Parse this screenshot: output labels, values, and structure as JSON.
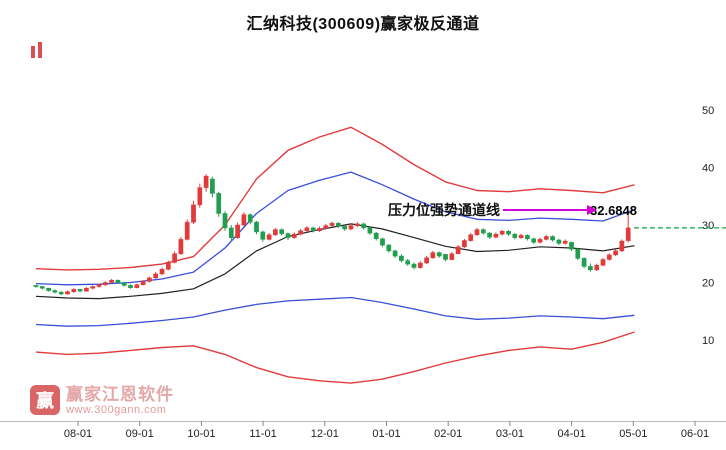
{
  "title": "汇纳科技(300609)赢家极反通道",
  "annotation": {
    "label": "压力位强势通道线",
    "value": "32.6848",
    "arrow_color": "#d400d4"
  },
  "watermark": {
    "logo_char": "赢",
    "name": "赢家江恩软件",
    "url": "www.300gann.com"
  },
  "colors": {
    "up": "#e03a3a",
    "down": "#1f9e50",
    "band_red": "#e23b3b",
    "band_blue": "#3a4fd8",
    "band_mid": "#222222",
    "last_price_line": "#18a54a",
    "axis_line": "#bbbbbb"
  },
  "axis": {
    "x_labels": [
      "08-01",
      "09-01",
      "10-01",
      "11-01",
      "12-01",
      "01-01",
      "02-01",
      "03-01",
      "04-01",
      "05-01",
      "06-01"
    ],
    "y_ticks": [
      50,
      40,
      30,
      20,
      10
    ]
  },
  "chart_data": {
    "type": "candlestick",
    "title": "汇纳科技(300609)赢家极反通道",
    "symbol": "汇纳科技",
    "code": "300609",
    "channel_name": "赢家极反通道",
    "pressure_line_label": "压力位强势通道线",
    "pressure_line_value": 32.6848,
    "last_price": 29.5,
    "y_axis_ticks": [
      50,
      40,
      30,
      20,
      10
    ],
    "x_axis_months": [
      "08-01",
      "09-01",
      "10-01",
      "11-01",
      "12-01",
      "01-01",
      "02-01",
      "03-01",
      "04-01",
      "05-01",
      "06-01"
    ],
    "candles_note": "estimated OHLC read from chart, ~2 trading days per candle, Jul下旬 to May上旬",
    "candles": [
      [
        19.5,
        19.6,
        19.1,
        19.3
      ],
      [
        19.3,
        19.4,
        18.8,
        19.0
      ],
      [
        19.0,
        19.1,
        18.4,
        18.6
      ],
      [
        18.6,
        18.8,
        18.1,
        18.3
      ],
      [
        18.3,
        18.5,
        17.8,
        18.0
      ],
      [
        18.0,
        18.6,
        17.9,
        18.4
      ],
      [
        18.4,
        19.0,
        18.2,
        18.8
      ],
      [
        18.8,
        18.9,
        18.3,
        18.5
      ],
      [
        18.5,
        19.2,
        18.4,
        19.0
      ],
      [
        19.0,
        19.5,
        18.8,
        19.3
      ],
      [
        19.3,
        19.8,
        19.1,
        19.6
      ],
      [
        19.6,
        20.2,
        19.4,
        20.0
      ],
      [
        20.0,
        20.6,
        19.8,
        20.4
      ],
      [
        20.4,
        20.5,
        19.8,
        20.0
      ],
      [
        20.0,
        20.1,
        19.3,
        19.5
      ],
      [
        19.5,
        19.7,
        18.9,
        19.1
      ],
      [
        19.1,
        19.8,
        19.0,
        19.6
      ],
      [
        19.6,
        20.4,
        19.5,
        20.2
      ],
      [
        20.2,
        21.0,
        20.0,
        20.8
      ],
      [
        20.8,
        21.8,
        20.6,
        21.5
      ],
      [
        21.5,
        22.6,
        21.3,
        22.3
      ],
      [
        22.3,
        23.8,
        22.1,
        23.5
      ],
      [
        23.5,
        25.4,
        23.3,
        25.0
      ],
      [
        25.0,
        27.9,
        24.8,
        27.5
      ],
      [
        27.5,
        31.0,
        27.3,
        30.5
      ],
      [
        30.5,
        34.2,
        30.2,
        33.5
      ],
      [
        33.5,
        37.2,
        33.0,
        36.5
      ],
      [
        36.5,
        38.8,
        35.8,
        38.5
      ],
      [
        38.0,
        38.4,
        34.8,
        35.5
      ],
      [
        35.5,
        35.8,
        31.4,
        32.0
      ],
      [
        32.0,
        32.4,
        29.0,
        29.5
      ],
      [
        29.5,
        30.0,
        27.2,
        27.8
      ],
      [
        27.8,
        30.4,
        27.6,
        30.0
      ],
      [
        30.0,
        32.2,
        29.8,
        31.8
      ],
      [
        31.8,
        32.0,
        30.1,
        30.5
      ],
      [
        30.5,
        30.7,
        28.4,
        28.8
      ],
      [
        28.8,
        29.0,
        27.1,
        27.5
      ],
      [
        27.5,
        28.6,
        27.3,
        28.3
      ],
      [
        28.3,
        29.5,
        28.1,
        29.2
      ],
      [
        29.2,
        29.4,
        28.2,
        28.5
      ],
      [
        28.5,
        28.7,
        27.4,
        27.8
      ],
      [
        27.8,
        28.7,
        27.6,
        28.4
      ],
      [
        28.4,
        29.3,
        28.2,
        29.0
      ],
      [
        29.0,
        29.8,
        28.8,
        29.5
      ],
      [
        29.5,
        29.7,
        28.7,
        29.0
      ],
      [
        29.0,
        29.7,
        28.8,
        29.4
      ],
      [
        29.4,
        30.2,
        29.2,
        29.9
      ],
      [
        29.9,
        30.6,
        29.7,
        30.3
      ],
      [
        30.3,
        30.5,
        29.5,
        29.8
      ],
      [
        29.8,
        30.0,
        29.0,
        29.3
      ],
      [
        29.3,
        30.2,
        29.1,
        29.9
      ],
      [
        29.9,
        30.5,
        29.6,
        30.2
      ],
      [
        30.2,
        30.4,
        29.2,
        29.5
      ],
      [
        29.5,
        29.7,
        28.3,
        28.6
      ],
      [
        28.6,
        28.8,
        27.3,
        27.6
      ],
      [
        27.6,
        27.8,
        26.2,
        26.5
      ],
      [
        26.5,
        26.7,
        25.2,
        25.5
      ],
      [
        25.5,
        25.7,
        24.3,
        24.6
      ],
      [
        24.6,
        24.9,
        23.5,
        23.8
      ],
      [
        23.8,
        24.1,
        22.9,
        23.2
      ],
      [
        23.2,
        23.5,
        22.3,
        22.6
      ],
      [
        22.6,
        23.7,
        22.4,
        23.4
      ],
      [
        23.4,
        24.6,
        23.2,
        24.3
      ],
      [
        24.3,
        25.5,
        24.1,
        25.2
      ],
      [
        25.2,
        25.4,
        24.3,
        24.6
      ],
      [
        24.9,
        25.0,
        23.7,
        24.0
      ],
      [
        24.0,
        25.3,
        23.9,
        25.0
      ],
      [
        25.0,
        26.5,
        24.9,
        26.2
      ],
      [
        26.2,
        27.6,
        26.0,
        27.3
      ],
      [
        27.3,
        28.6,
        27.1,
        28.3
      ],
      [
        28.3,
        29.5,
        28.1,
        29.2
      ],
      [
        29.2,
        29.4,
        28.3,
        28.6
      ],
      [
        28.6,
        28.8,
        27.6,
        27.9
      ],
      [
        27.9,
        28.7,
        27.7,
        28.4
      ],
      [
        28.4,
        29.2,
        28.2,
        28.9
      ],
      [
        28.9,
        29.1,
        28.1,
        28.4
      ],
      [
        28.4,
        28.6,
        27.5,
        27.8
      ],
      [
        27.8,
        28.5,
        27.6,
        28.2
      ],
      [
        28.2,
        28.4,
        27.3,
        27.6
      ],
      [
        27.6,
        27.8,
        26.7,
        27.0
      ],
      [
        27.0,
        27.8,
        26.8,
        27.5
      ],
      [
        27.5,
        28.3,
        27.3,
        28.0
      ],
      [
        28.0,
        28.2,
        27.1,
        27.4
      ],
      [
        27.4,
        27.6,
        26.5,
        26.8
      ],
      [
        26.8,
        27.5,
        26.6,
        27.2
      ],
      [
        27.0,
        27.1,
        25.5,
        25.8
      ],
      [
        25.8,
        26.0,
        23.9,
        24.2
      ],
      [
        24.2,
        24.4,
        22.5,
        22.8
      ],
      [
        22.8,
        23.3,
        21.9,
        22.2
      ],
      [
        22.2,
        23.3,
        22.0,
        23.0
      ],
      [
        23.0,
        24.3,
        22.8,
        24.0
      ],
      [
        24.0,
        25.1,
        23.8,
        24.8
      ],
      [
        24.8,
        25.8,
        24.6,
        25.5
      ],
      [
        25.5,
        27.5,
        25.3,
        27.2
      ],
      [
        27.3,
        32.7,
        27.0,
        29.5
      ]
    ],
    "bands": {
      "knot_step": 5,
      "upper_red": [
        22.4,
        22.2,
        22.3,
        22.6,
        23.2,
        24.5,
        30.0,
        38.0,
        43.0,
        45.3,
        47.0,
        44.0,
        40.5,
        37.5,
        36.0,
        35.8,
        36.3,
        36.0,
        35.6,
        37.0
      ],
      "upper_blue": [
        19.8,
        19.6,
        19.7,
        20.0,
        20.6,
        21.8,
        26.0,
        32.0,
        36.0,
        37.8,
        39.2,
        37.0,
        34.5,
        32.3,
        31.0,
        30.8,
        31.2,
        31.0,
        30.7,
        32.6848
      ],
      "middle": [
        17.6,
        17.3,
        17.2,
        17.6,
        18.1,
        18.9,
        21.5,
        25.5,
        28.0,
        29.2,
        30.2,
        29.3,
        27.8,
        26.3,
        25.4,
        25.6,
        26.2,
        26.0,
        25.5,
        26.4
      ],
      "lower_blue": [
        12.7,
        12.4,
        12.5,
        12.9,
        13.4,
        14.0,
        15.2,
        16.2,
        16.8,
        17.1,
        17.4,
        16.5,
        15.4,
        14.2,
        13.6,
        13.8,
        14.2,
        14.0,
        13.7,
        14.3
      ],
      "lower_red": [
        7.9,
        7.5,
        7.7,
        8.2,
        8.7,
        9.0,
        7.5,
        5.2,
        3.6,
        2.9,
        2.5,
        3.2,
        4.5,
        6.0,
        7.2,
        8.2,
        8.8,
        8.4,
        9.6,
        11.4
      ]
    },
    "y_range": [
      -4,
      59
    ],
    "legend_position": "none",
    "grid": false
  }
}
